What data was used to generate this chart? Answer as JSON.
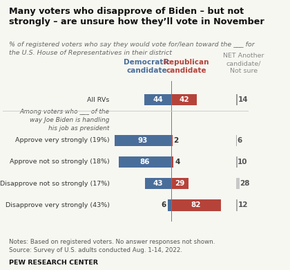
{
  "title": "Many voters who disapprove of Biden – but not\nstrongly – are unsure how they’ll vote in November",
  "subtitle": "% of registered voters who say they would vote for/lean toward the ___ for\nthe U.S. House of Representatives in their district",
  "categories": [
    "All RVs",
    "Approve very strongly (19%)",
    "Approve not so strongly (18%)",
    "Disapprove not so strongly (17%)",
    "Disapprove very strongly (43%)"
  ],
  "italic_header": "Among voters who ___ of the\nway Joe Biden is handling\nhis job as president",
  "dem_values": [
    44,
    93,
    86,
    43,
    6
  ],
  "rep_values": [
    42,
    2,
    4,
    29,
    82
  ],
  "net_values": [
    14,
    6,
    10,
    28,
    12
  ],
  "dem_color": "#4a6e9a",
  "rep_color": "#b5433a",
  "net_colors": [
    "#999999",
    "#aaaaaa",
    "#aaaaaa",
    "#c8c8c8",
    "#aaaaaa"
  ],
  "dem_label": "Democratic\ncandidate",
  "rep_label": "Republican\ncandidate",
  "net_label": "NET Another\ncandidate/\nNot sure",
  "notes_line1": "Notes: Based on registered voters. No answer responses not shown.",
  "notes_line2": "Source: Survey of U.S. adults conducted Aug. 1-14, 2022.",
  "source_bold": "PEW RESEARCH CENTER",
  "bg_color": "#f7f7f2"
}
